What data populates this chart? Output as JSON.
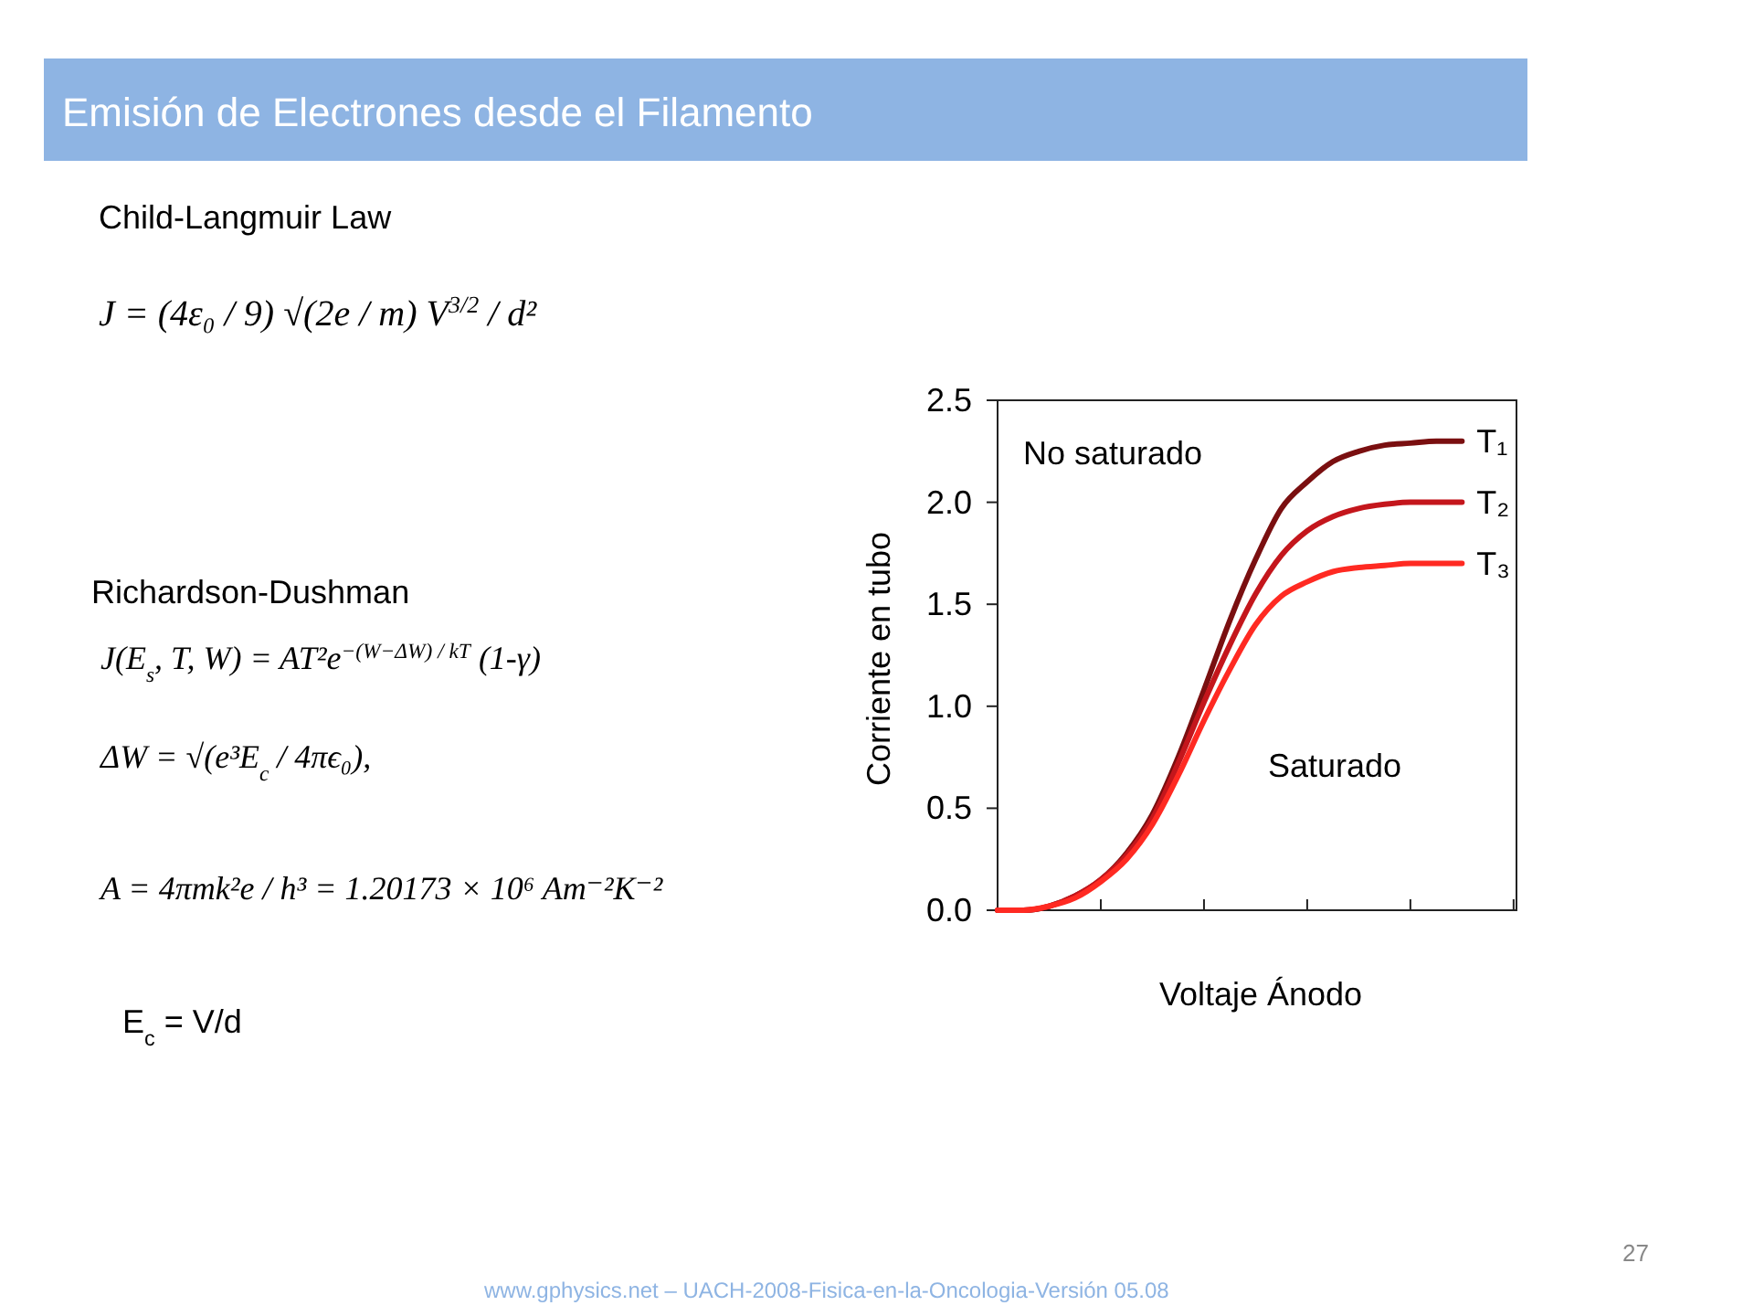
{
  "chart_data": {
    "type": "line",
    "title": "Emisión de Electrones desde el Filamento",
    "xlabel": "Voltaje Ánodo",
    "ylabel": "Corriente en tubo",
    "categories": [
      null,
      null,
      null,
      null,
      null,
      null,
      null,
      null,
      null,
      null,
      null,
      null,
      null,
      null,
      null,
      null,
      null,
      null,
      null
    ],
    "series": [
      {
        "name": "T₁",
        "color": "#7a0f10",
        "values": [
          0,
          0,
          0.02,
          0.07,
          0.15,
          0.28,
          0.47,
          0.75,
          1.08,
          1.42,
          1.72,
          1.97,
          2.1,
          2.2,
          2.25,
          2.28,
          2.29,
          2.3,
          2.3
        ]
      },
      {
        "name": "T₂",
        "color": "#c4161c",
        "values": [
          0,
          0,
          0.02,
          0.07,
          0.15,
          0.27,
          0.45,
          0.72,
          1.02,
          1.3,
          1.55,
          1.74,
          1.86,
          1.93,
          1.97,
          1.99,
          2,
          2,
          2
        ]
      },
      {
        "name": "T₃",
        "color": "#ff2a22",
        "values": [
          0,
          0,
          0.02,
          0.06,
          0.14,
          0.25,
          0.42,
          0.66,
          0.93,
          1.18,
          1.4,
          1.54,
          1.61,
          1.66,
          1.68,
          1.69,
          1.7,
          1.7,
          1.7
        ]
      }
    ],
    "ylim": [
      0,
      2.5
    ],
    "yticks": [
      {
        "value": 0,
        "label": "0.0"
      },
      {
        "value": 0.5,
        "label": "0.5"
      },
      {
        "value": 1,
        "label": "1.0"
      },
      {
        "value": 1.5,
        "label": "1.5"
      },
      {
        "value": 2,
        "label": "2.0"
      },
      2.5
    ],
    "grid": false,
    "marker": "none",
    "line_style": "solid",
    "annotations": [
      "Child-Langmuir Law",
      "J = (4ε₀ / 9) √(2e / m) V$^{3/2}$ / d²",
      "Richardson-Dushman",
      "J(E$_{s}$, T, W) = AT²e$^{−(W−ΔW) / kT}$  (1-γ)",
      "ΔW = √(e³E$_{c}$ / 4πϵ₀),",
      "A = 4πmk²e / h³ = 1.20173 × 10⁶ Am⁻²K⁻²",
      "E$_{c}$ = V/d",
      "No saturado",
      "Saturado",
      "www.gphysics.net – UACH-2008-Fisica-en-la-Oncologia-Versión 05.08",
      "27"
    ]
  }
}
